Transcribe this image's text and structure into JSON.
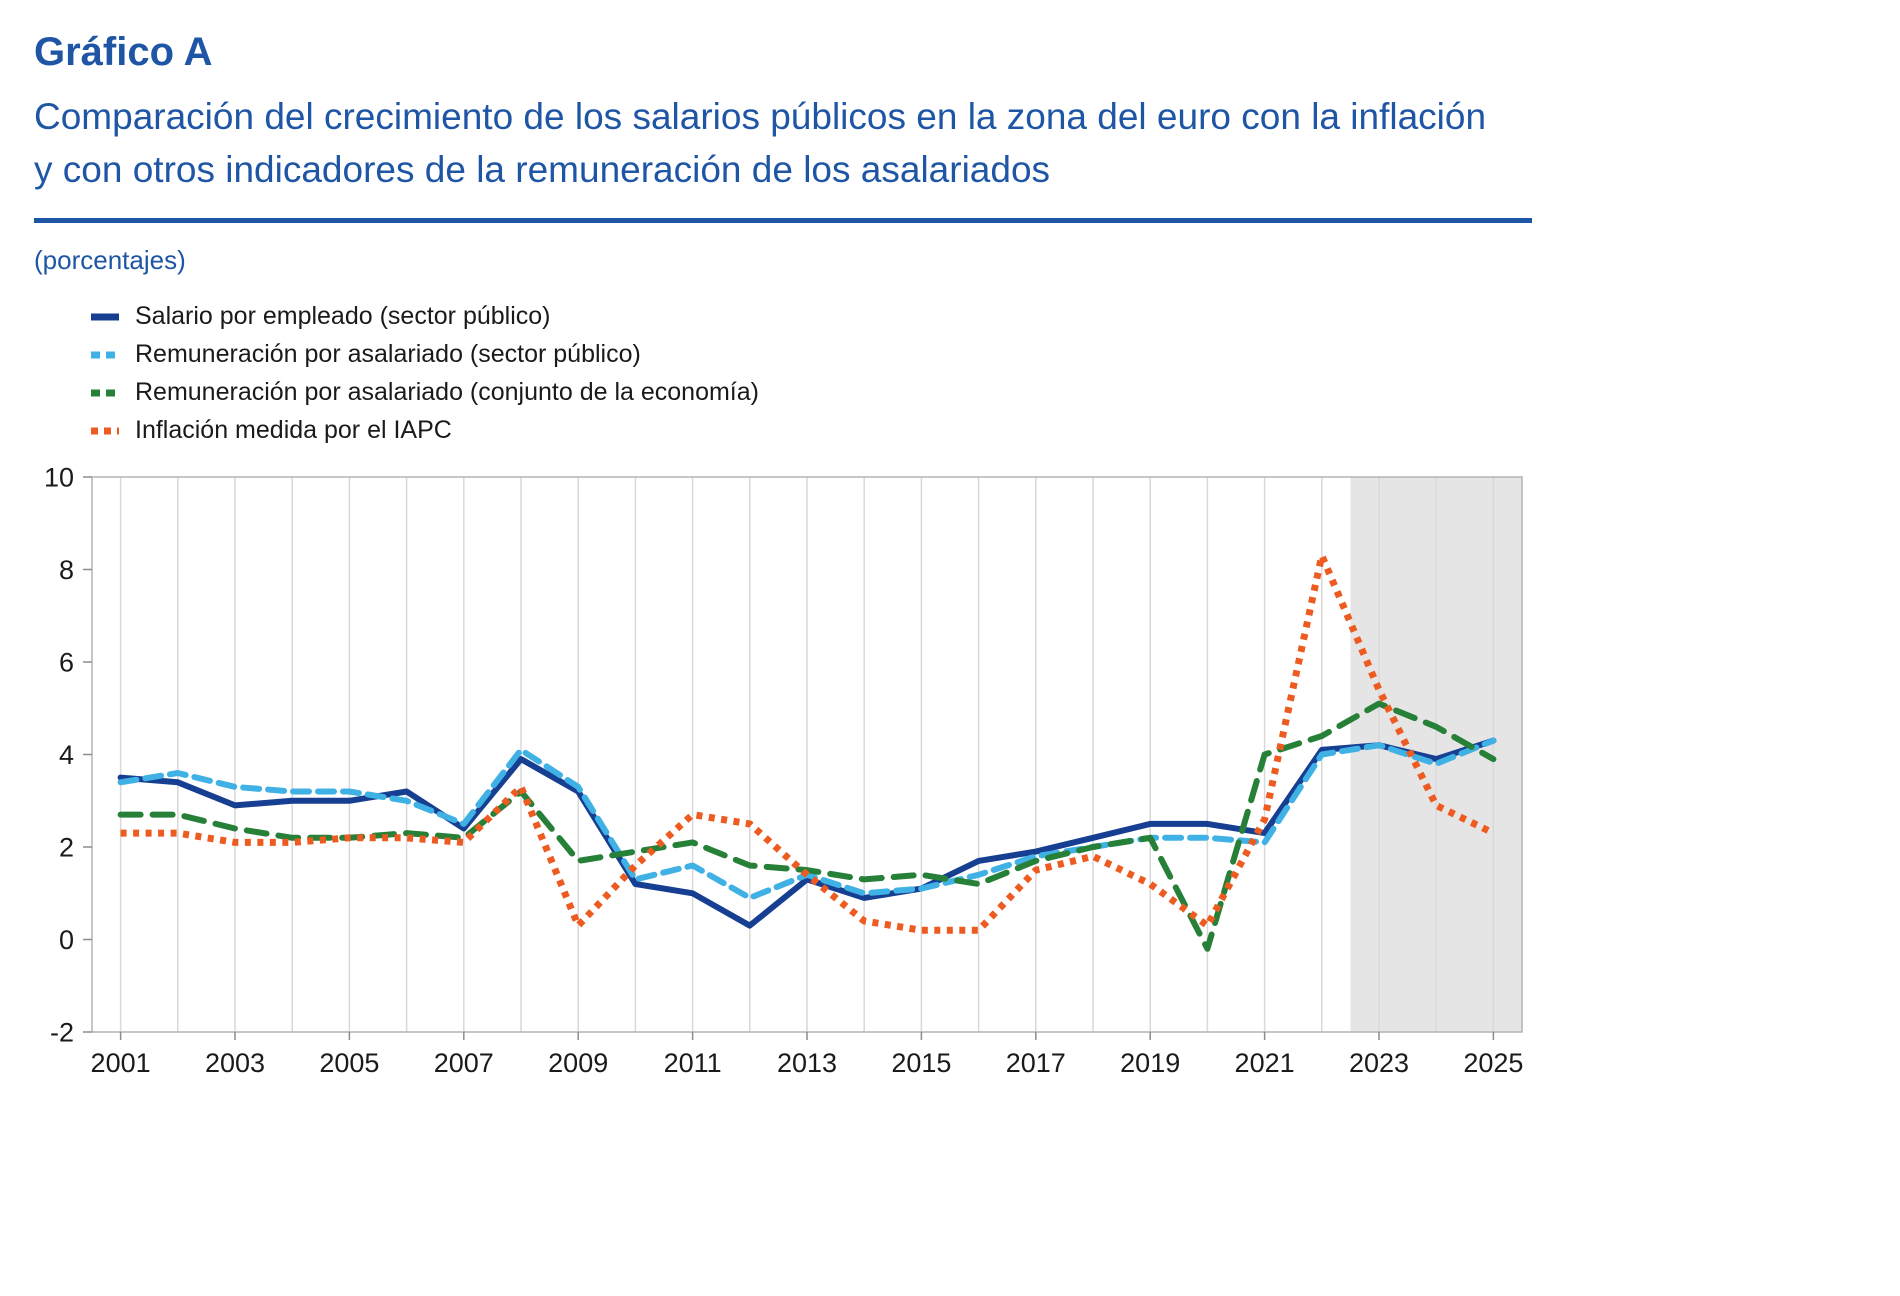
{
  "header": {
    "title": "Gráfico A",
    "subtitle": "Comparación del crecimiento de los salarios públicos en la zona del euro con la inflación y con otros indicadores de la remuneración de los asalariados",
    "unit_label": "(porcentajes)"
  },
  "colors": {
    "heading": "#1e56a5",
    "projection_shade": "#e5e5e5",
    "gridline": "#d9d9d9",
    "plot_frame": "#b3b3b3"
  },
  "chart_data": {
    "type": "line",
    "x": [
      2001,
      2002,
      2003,
      2004,
      2005,
      2006,
      2007,
      2008,
      2009,
      2010,
      2011,
      2012,
      2013,
      2014,
      2015,
      2016,
      2017,
      2018,
      2019,
      2020,
      2021,
      2022,
      2023,
      2024,
      2025
    ],
    "x_tick_labels": [
      "2001",
      "2003",
      "2005",
      "2007",
      "2009",
      "2011",
      "2013",
      "2015",
      "2017",
      "2019",
      "2021",
      "2023",
      "2025"
    ],
    "x_tick_years": [
      2001,
      2003,
      2005,
      2007,
      2009,
      2011,
      2013,
      2015,
      2017,
      2019,
      2021,
      2023,
      2025
    ],
    "xlim": [
      2000.5,
      2025.5
    ],
    "ylim": [
      -2,
      10
    ],
    "y_ticks": [
      10,
      8,
      6,
      4,
      2,
      0,
      -2
    ],
    "grid": "vertical",
    "legend_position": "top-left",
    "projection_shading_start": 2022.5,
    "series": [
      {
        "name": "Salario por empleado (sector público)",
        "color": "#163f92",
        "style": "solid",
        "values": [
          3.5,
          3.4,
          2.9,
          3.0,
          3.0,
          3.2,
          2.4,
          3.9,
          3.2,
          1.2,
          1.0,
          0.3,
          1.3,
          0.9,
          1.1,
          1.7,
          1.9,
          2.2,
          2.5,
          2.5,
          2.3,
          4.1,
          4.2,
          3.9,
          4.3
        ]
      },
      {
        "name": "Remuneración por asalariado (sector público)",
        "color": "#3fb1e5",
        "style": "dashed",
        "values": [
          3.4,
          3.6,
          3.3,
          3.2,
          3.2,
          3.0,
          2.5,
          4.1,
          3.3,
          1.3,
          1.6,
          0.9,
          1.4,
          1.0,
          1.1,
          1.4,
          1.8,
          2.0,
          2.2,
          2.2,
          2.1,
          4.0,
          4.2,
          3.8,
          4.3
        ]
      },
      {
        "name": "Remuneración por asalariado (conjunto de la economía)",
        "color": "#278038",
        "style": "long-dashed",
        "values": [
          2.7,
          2.7,
          2.4,
          2.2,
          2.2,
          2.3,
          2.2,
          3.2,
          1.7,
          1.9,
          2.1,
          1.6,
          1.5,
          1.3,
          1.4,
          1.2,
          1.7,
          2.0,
          2.2,
          -0.2,
          4.0,
          4.4,
          5.1,
          4.6,
          3.9
        ]
      },
      {
        "name": "Inflación medida por el IAPC",
        "color": "#ee5b21",
        "style": "dotted",
        "values": [
          2.3,
          2.3,
          2.1,
          2.1,
          2.2,
          2.2,
          2.1,
          3.3,
          0.3,
          1.6,
          2.7,
          2.5,
          1.4,
          0.4,
          0.2,
          0.2,
          1.5,
          1.8,
          1.2,
          0.3,
          2.6,
          8.3,
          5.4,
          2.9,
          2.3
        ]
      }
    ]
  }
}
